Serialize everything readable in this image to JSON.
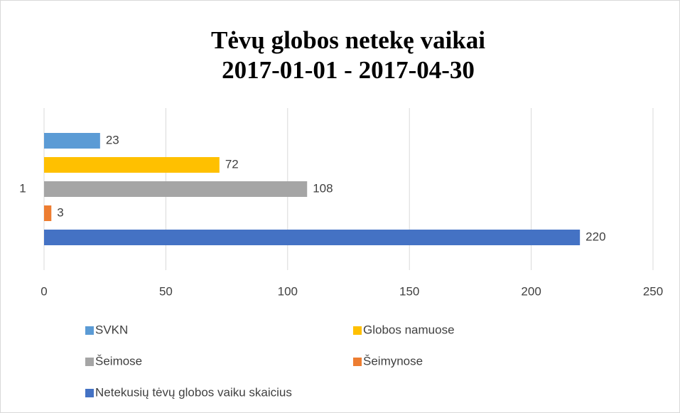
{
  "chart_data": {
    "type": "bar",
    "orientation": "horizontal",
    "title": [
      "Tėvų globos netekę vaikai",
      "2017-01-01 - 2017-04-30"
    ],
    "categories": [
      "1"
    ],
    "series": [
      {
        "name": "SVKN",
        "color": "#5b9bd5",
        "values": [
          23
        ]
      },
      {
        "name": "Globos namuose",
        "color": "#ffc000",
        "values": [
          72
        ]
      },
      {
        "name": "Šeimose",
        "color": "#a5a5a5",
        "values": [
          108
        ]
      },
      {
        "name": "Šeimynose",
        "color": "#ed7d31",
        "values": [
          3
        ]
      },
      {
        "name": "Netekusių tėvų globos vaiku skaicius",
        "color": "#4472c4",
        "values": [
          220
        ]
      }
    ],
    "xlim": [
      0,
      250
    ],
    "xticks": [
      0,
      50,
      100,
      150,
      200,
      250
    ],
    "grid": true,
    "legend": "bottom"
  }
}
